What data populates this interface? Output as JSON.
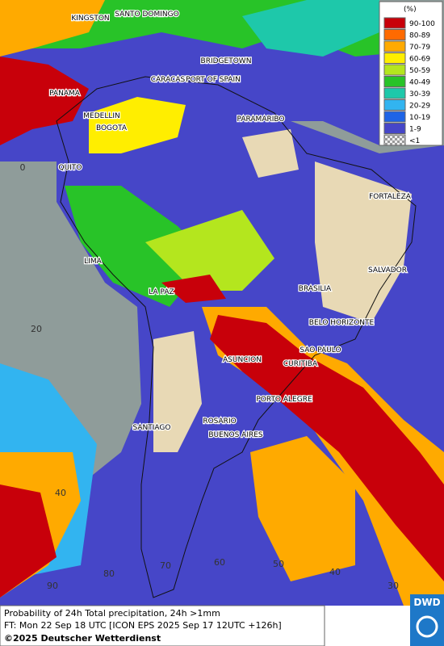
{
  "map": {
    "cities": [
      "KINGSTON",
      "SANTO DOMINGO",
      "BRIDGETOWN",
      "CARACAS",
      "PORT OF SPAIN",
      "PANAMA",
      "MEDELLIN",
      "PARAMARIBO",
      "BOGOTA",
      "QUITO",
      "FORTALEZA",
      "LIMA",
      "SALVADOR",
      "BRASILIA",
      "LA PAZ",
      "BELO HORIZONTE",
      "SAO PAULO",
      "ASUNCION",
      "CURITIBA",
      "PORTO ALEGRE",
      "ROSARIO",
      "SANTIAGO",
      "BUENOS AIRES"
    ],
    "grid_labels": [
      "0",
      "20",
      "40",
      "90",
      "80",
      "70",
      "60",
      "50",
      "40",
      "30"
    ],
    "legend": {
      "title": "(%)",
      "items": [
        {
          "label": "90-100",
          "color": "#c8000a"
        },
        {
          "label": "80-89",
          "color": "#ff6a00"
        },
        {
          "label": "70-79",
          "color": "#ffaa00"
        },
        {
          "label": "60-69",
          "color": "#ffee00"
        },
        {
          "label": "50-59",
          "color": "#b4e61e"
        },
        {
          "label": "40-49",
          "color": "#28c328"
        },
        {
          "label": "30-39",
          "color": "#1ec8aa"
        },
        {
          "label": "20-29",
          "color": "#32b4f0"
        },
        {
          "label": "10-19",
          "color": "#1e64e6"
        },
        {
          "label": "1-9",
          "color": "#4646c8"
        },
        {
          "label": "<1",
          "color": "checker"
        }
      ]
    },
    "footer": [
      "Probability of 24h Total precipitation, 24h >1mm",
      "FT: Mon 22 Sep 18 UTC [ICON EPS 2025 Sep 17 12UTC +126h]",
      "©2025 Deutscher Wetterdienst"
    ],
    "logo": "DWD"
  }
}
